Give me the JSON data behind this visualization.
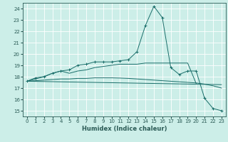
{
  "title": "",
  "xlabel": "Humidex (Indice chaleur)",
  "ylabel": "",
  "background_color": "#cceee8",
  "grid_color": "#ffffff",
  "line_color": "#1a6e6a",
  "xlim": [
    -0.5,
    23.5
  ],
  "ylim": [
    14.5,
    24.5
  ],
  "xticks": [
    0,
    1,
    2,
    3,
    4,
    5,
    6,
    7,
    8,
    9,
    10,
    11,
    12,
    13,
    14,
    15,
    16,
    17,
    18,
    19,
    20,
    21,
    22,
    23
  ],
  "yticks": [
    15,
    16,
    17,
    18,
    19,
    20,
    21,
    22,
    23,
    24
  ],
  "lines": [
    {
      "x": [
        0,
        1,
        2,
        3,
        4,
        5,
        6,
        7,
        8,
        9,
        10,
        11,
        12,
        13,
        14,
        15,
        16,
        17,
        18,
        19,
        20,
        21,
        22,
        23
      ],
      "y": [
        17.6,
        17.9,
        18.0,
        18.3,
        18.5,
        18.6,
        19.0,
        19.1,
        19.3,
        19.3,
        19.3,
        19.4,
        19.5,
        20.2,
        22.5,
        24.2,
        23.2,
        18.8,
        18.2,
        18.5,
        18.5,
        16.1,
        15.2,
        15.0
      ],
      "marker": "+"
    },
    {
      "x": [
        0,
        1,
        2,
        3,
        4,
        5,
        6,
        7,
        8,
        9,
        10,
        11,
        12,
        13,
        14,
        15,
        16,
        17,
        18,
        19,
        20
      ],
      "y": [
        17.6,
        17.8,
        18.0,
        18.3,
        18.5,
        18.3,
        18.5,
        18.6,
        18.8,
        18.9,
        19.0,
        19.1,
        19.1,
        19.1,
        19.2,
        19.2,
        19.2,
        19.2,
        19.2,
        19.2,
        17.4
      ],
      "marker": null
    },
    {
      "x": [
        0,
        23
      ],
      "y": [
        17.6,
        17.3
      ],
      "marker": null
    },
    {
      "x": [
        0,
        1,
        2,
        3,
        4,
        5,
        6,
        7,
        8,
        9,
        10,
        11,
        12,
        13,
        14,
        15,
        16,
        17,
        18,
        19,
        20,
        21,
        22,
        23
      ],
      "y": [
        17.6,
        17.65,
        17.7,
        17.75,
        17.8,
        17.8,
        17.85,
        17.85,
        17.9,
        17.9,
        17.9,
        17.88,
        17.85,
        17.8,
        17.75,
        17.7,
        17.65,
        17.6,
        17.55,
        17.5,
        17.45,
        17.35,
        17.2,
        17.0
      ],
      "marker": null
    }
  ],
  "xlabel_fontsize": 6,
  "tick_fontsize": 5,
  "tick_color": "#2a5a55",
  "spine_color": "#2a5a55"
}
